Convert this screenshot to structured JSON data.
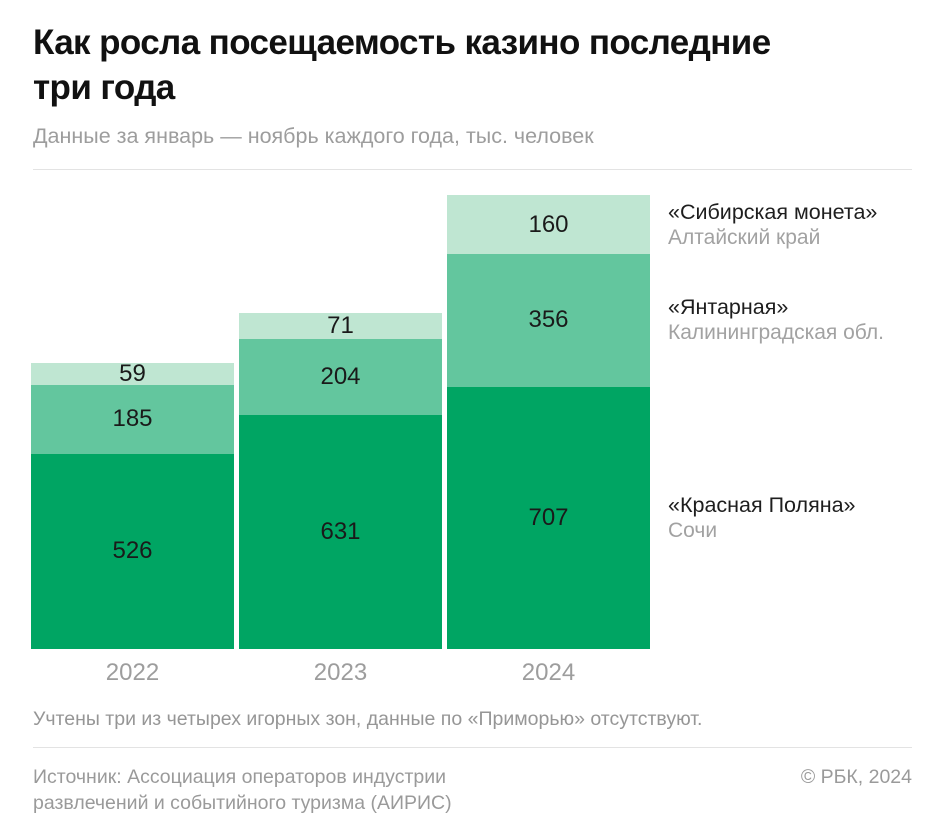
{
  "header": {
    "title": "Как росла посещаемость казино последние три года",
    "subtitle": "Данные за январь — ноябрь каждого года, тыс. человек"
  },
  "chart_data": {
    "type": "bar",
    "stacked": true,
    "grid": false,
    "legend_position": "right",
    "unit": "тыс. человек",
    "categories": [
      "2022",
      "2023",
      "2024"
    ],
    "series": [
      {
        "name": "«Красная Поляна»",
        "region": "Сочи",
        "color": "#00A563",
        "values": [
          526,
          631,
          707
        ]
      },
      {
        "name": "«Янтарная»",
        "region": "Калининградская обл.",
        "color": "#63C69E",
        "values": [
          185,
          204,
          356
        ]
      },
      {
        "name": "«Сибирская монета»",
        "region": "Алтайский край",
        "color": "#BFE6D2",
        "values": [
          59,
          71,
          160
        ]
      }
    ],
    "totals": [
      770,
      906,
      1223
    ]
  },
  "footnote": "Учтены три из четырех игорных зон, данные по «Приморью» отсутствуют.",
  "source": {
    "label": "Источник: Ассоциация операторов индустрии развлечений и событийного туризма (АИРИС)",
    "copyright": "© РБК, 2024"
  },
  "colors": {
    "title_text": "#111111",
    "muted_text": "#9d9d9d",
    "value_text": "#1a1a1a",
    "divider": "#e3e3e3",
    "background": "#ffffff"
  }
}
